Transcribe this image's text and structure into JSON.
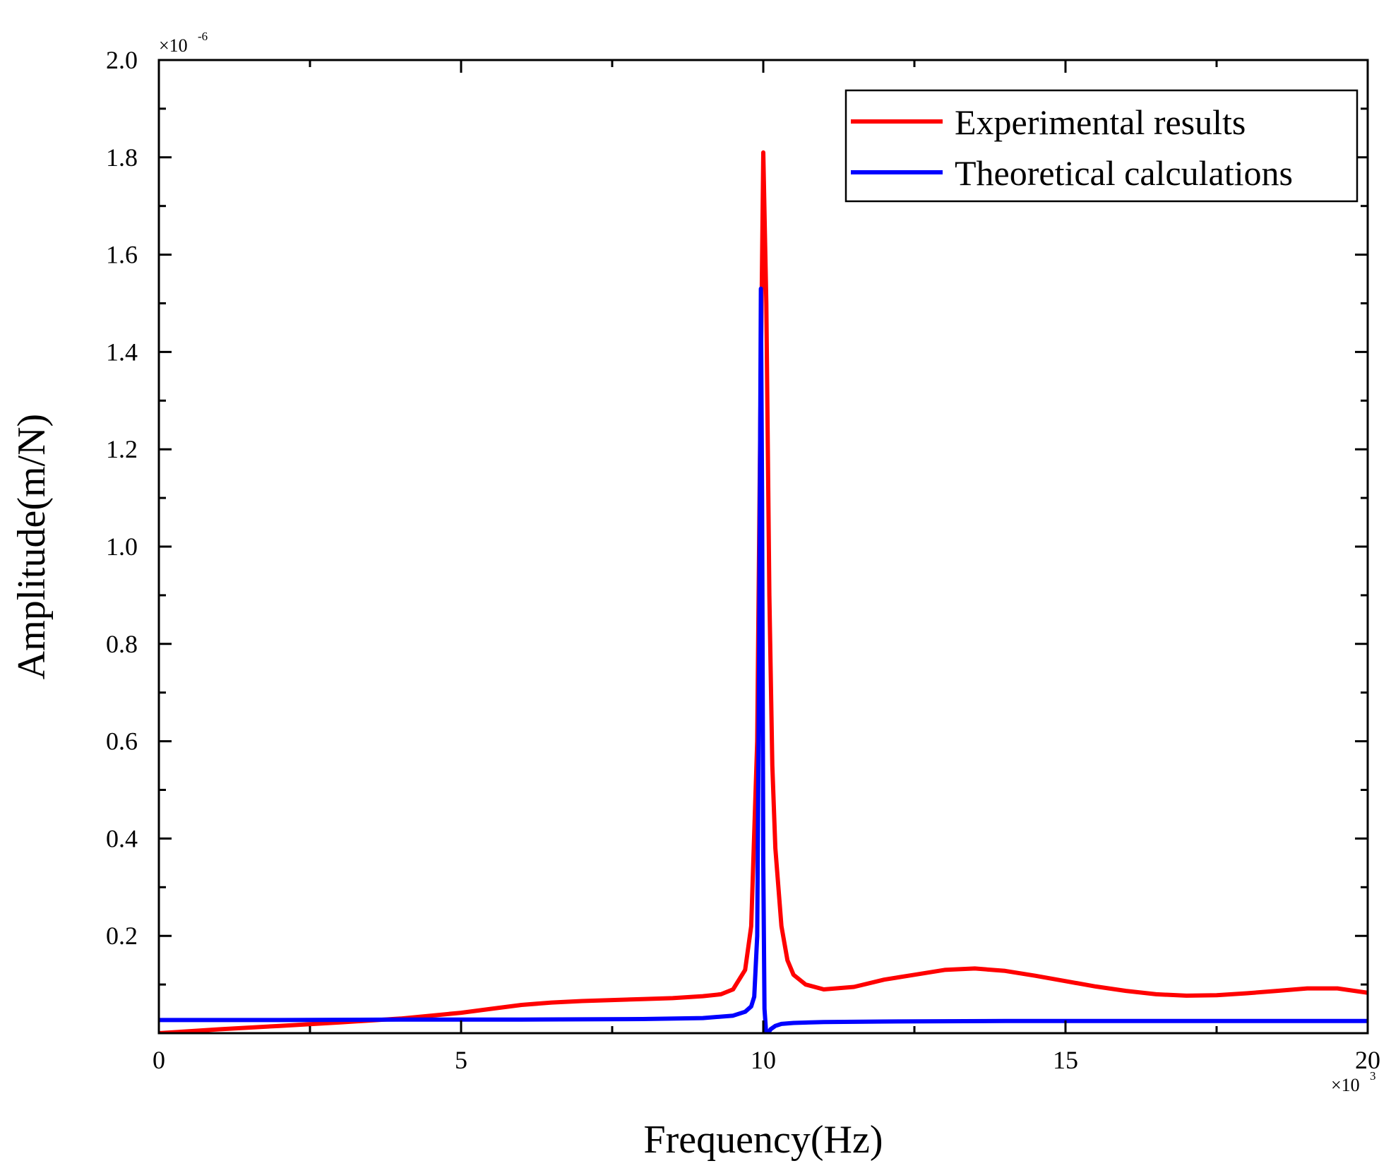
{
  "chart_data": {
    "type": "line",
    "title": "",
    "xlabel": "Frequency(Hz)",
    "ylabel": "Amplitude(m/N)",
    "x_multiplier": {
      "base": "×10",
      "exp": "3"
    },
    "y_multiplier": {
      "base": "×10",
      "exp": "-6"
    },
    "xlim": [
      0,
      20
    ],
    "ylim": [
      0,
      2.0
    ],
    "x_ticks": [
      0,
      5,
      10,
      15,
      20
    ],
    "x_tick_labels": [
      "0",
      "5",
      "10",
      "15",
      "20"
    ],
    "y_ticks": [
      0.2,
      0.4,
      0.6,
      0.8,
      1.0,
      1.2,
      1.4,
      1.6,
      1.8,
      2.0
    ],
    "y_tick_labels": [
      "0.2",
      "0.4",
      "0.6",
      "0.8",
      "1.0",
      "1.2",
      "1.4",
      "1.6",
      "1.8",
      "2.0"
    ],
    "legend_position": "top-right",
    "grid": false,
    "series": [
      {
        "name": "Experimental results",
        "color": "#ff0000",
        "x": [
          0,
          1,
          2,
          3,
          4,
          5,
          5.5,
          6,
          6.5,
          7,
          7.5,
          8,
          8.5,
          9,
          9.3,
          9.5,
          9.7,
          9.8,
          9.9,
          9.95,
          10.0,
          10.05,
          10.1,
          10.15,
          10.2,
          10.3,
          10.4,
          10.5,
          10.7,
          11.0,
          11.5,
          12.0,
          12.5,
          13.0,
          13.5,
          14.0,
          14.5,
          15.0,
          15.5,
          16.0,
          16.5,
          17.0,
          17.5,
          18.0,
          18.5,
          19.0,
          19.5,
          20.0
        ],
        "y": [
          0.0,
          0.008,
          0.015,
          0.022,
          0.03,
          0.042,
          0.05,
          0.058,
          0.063,
          0.066,
          0.068,
          0.07,
          0.072,
          0.076,
          0.08,
          0.09,
          0.13,
          0.22,
          0.6,
          1.25,
          1.81,
          1.5,
          0.9,
          0.55,
          0.38,
          0.22,
          0.15,
          0.12,
          0.1,
          0.09,
          0.095,
          0.11,
          0.12,
          0.13,
          0.133,
          0.128,
          0.118,
          0.107,
          0.096,
          0.087,
          0.08,
          0.077,
          0.078,
          0.082,
          0.087,
          0.092,
          0.092,
          0.083
        ]
      },
      {
        "name": "Theoretical calculations",
        "color": "#0000ff",
        "x": [
          0,
          2,
          4,
          6,
          8,
          9,
          9.5,
          9.7,
          9.8,
          9.85,
          9.9,
          9.93,
          9.96,
          9.98,
          10.0,
          10.02,
          10.05,
          10.08,
          10.12,
          10.2,
          10.3,
          10.5,
          11.0,
          12.0,
          14.0,
          16.0,
          18.0,
          20.0
        ],
        "y": [
          0.027,
          0.027,
          0.028,
          0.028,
          0.029,
          0.031,
          0.036,
          0.044,
          0.055,
          0.075,
          0.2,
          0.75,
          1.53,
          1.1,
          0.35,
          0.05,
          -0.005,
          0.0,
          0.008,
          0.015,
          0.019,
          0.021,
          0.023,
          0.024,
          0.025,
          0.025,
          0.025,
          0.025
        ]
      }
    ]
  }
}
